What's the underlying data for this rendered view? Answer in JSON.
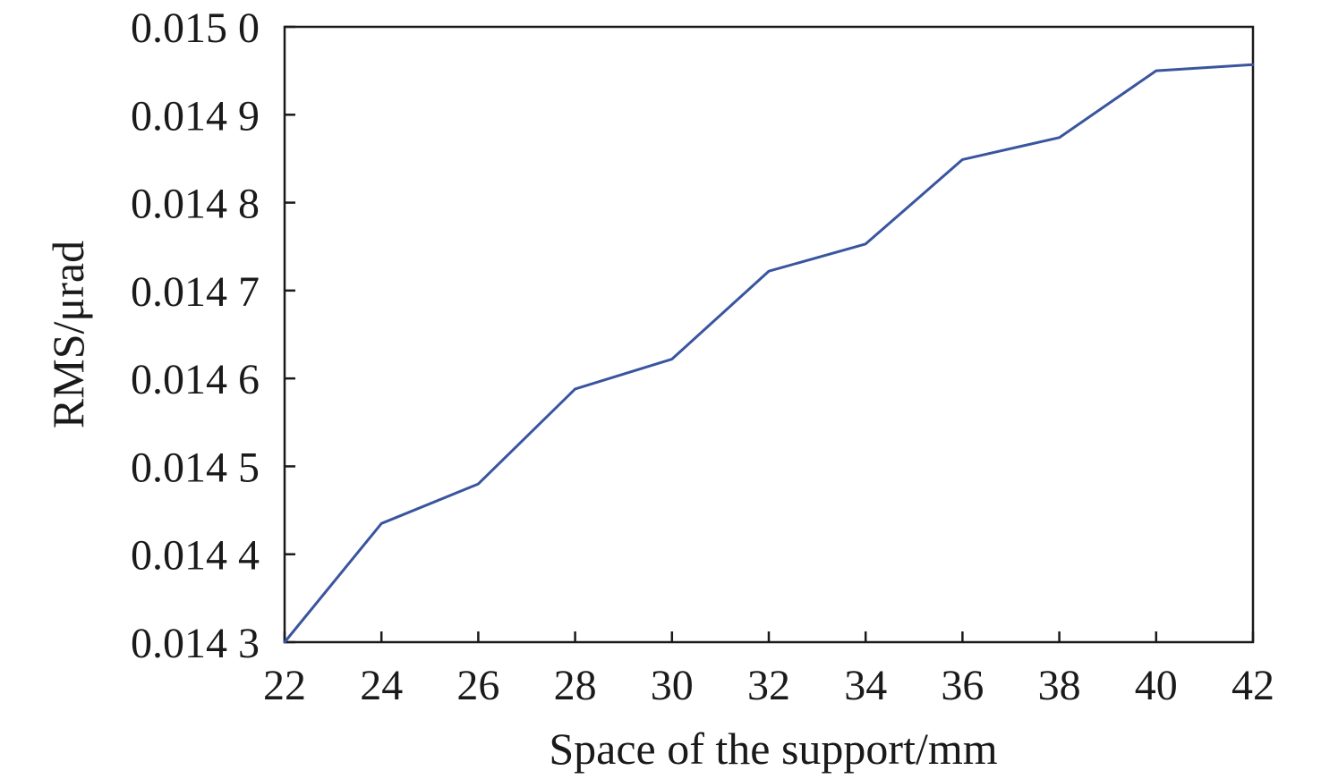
{
  "chart_data": {
    "type": "line",
    "title": "",
    "xlabel": "Space of the support/mm",
    "ylabel": "RMS/μrad",
    "x": [
      22,
      24,
      26,
      28,
      30,
      32,
      34,
      36,
      38,
      40,
      42
    ],
    "series": [
      {
        "values": [
          0.0143,
          0.014435,
          0.01448,
          0.014588,
          0.014622,
          0.014722,
          0.014753,
          0.014849,
          0.014874,
          0.01495,
          0.014957
        ],
        "color": "#3a559f"
      }
    ],
    "xlim": [
      22,
      42
    ],
    "ylim": [
      0.0143,
      0.015
    ],
    "x_ticks": [
      22,
      24,
      26,
      28,
      30,
      32,
      34,
      36,
      38,
      40,
      42
    ],
    "x_tick_labels": [
      "22",
      "24",
      "26",
      "28",
      "30",
      "32",
      "34",
      "36",
      "38",
      "40",
      "42"
    ],
    "y_ticks": [
      0.0143,
      0.0144,
      0.0145,
      0.0146,
      0.0147,
      0.0148,
      0.0149,
      0.015
    ],
    "y_tick_labels": [
      "0.014 3",
      "0.014 4",
      "0.014 5",
      "0.014 6",
      "0.014 7",
      "0.014 8",
      "0.014 9",
      "0.015 0"
    ],
    "grid": false,
    "legend": "none"
  }
}
